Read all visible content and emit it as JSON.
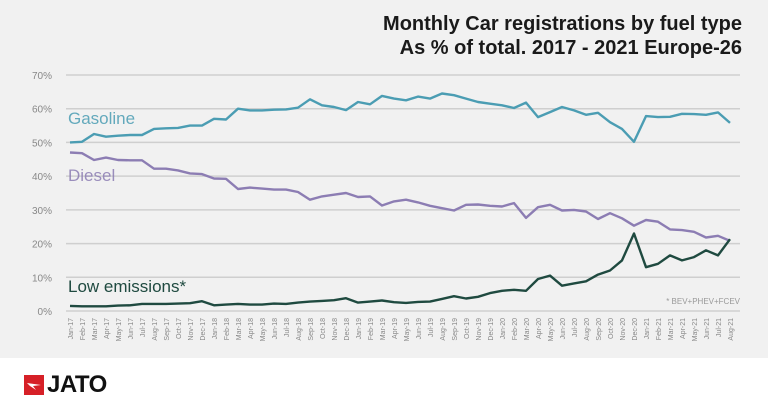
{
  "chart_data": {
    "type": "line",
    "title": "Monthly Car registrations by fuel type",
    "subtitle": "As % of total. 2017 - 2021 Europe-26",
    "xlabel": "",
    "ylabel": "",
    "ylim": [
      0,
      70
    ],
    "yticks": [
      "0%",
      "10%",
      "20%",
      "30%",
      "40%",
      "50%",
      "60%",
      "70%"
    ],
    "grid": true,
    "note": "* BEV+PHEV+FCEV",
    "x": [
      "Jan-17",
      "Feb-17",
      "Mar-17",
      "Apr-17",
      "May-17",
      "Jun-17",
      "Jul-17",
      "Aug-17",
      "Sep-17",
      "Oct-17",
      "Nov-17",
      "Dec-17",
      "Jan-18",
      "Feb-18",
      "Mar-18",
      "Apr-18",
      "May-18",
      "Jun-18",
      "Jul-18",
      "Aug-18",
      "Sep-18",
      "Oct-18",
      "Nov-18",
      "Dec-18",
      "Jan-19",
      "Feb-19",
      "Mar-19",
      "Apr-19",
      "May-19",
      "Jun-19",
      "Jul-19",
      "Aug-19",
      "Sep-19",
      "Oct-19",
      "Nov-19",
      "Dec-19",
      "Jan-20",
      "Feb-20",
      "Mar-20",
      "Apr-20",
      "May-20",
      "Jun-20",
      "Jul-20",
      "Aug-20",
      "Sep-20",
      "Oct-20",
      "Nov-20",
      "Dec-20",
      "Jan-21",
      "Feb-21",
      "Mar-21",
      "Apr-21",
      "May-21",
      "Jun-21",
      "Jul-21",
      "Aug-21"
    ],
    "series": [
      {
        "name": "Gasoline",
        "color": "#4b9db3",
        "values": [
          50,
          50.2,
          52.5,
          51.7,
          52,
          52.2,
          52.2,
          54,
          54.2,
          54.3,
          55,
          55,
          57,
          56.8,
          60,
          59.5,
          59.5,
          59.7,
          59.8,
          60.3,
          62.8,
          61,
          60.5,
          59.6,
          62,
          61.3,
          63.8,
          63,
          62.5,
          63.6,
          63,
          64.5,
          64,
          63,
          62,
          61.5,
          61,
          60.2,
          61.8,
          57.5,
          59,
          60.5,
          59.5,
          58.2,
          58.8,
          56,
          54,
          50.2,
          57.8,
          57.5,
          57.6,
          58.5,
          58.4,
          58.2,
          58.9,
          55.8
        ]
      },
      {
        "name": "Diesel",
        "color": "#8c7db3",
        "values": [
          47,
          46.8,
          44.8,
          45.5,
          44.8,
          44.7,
          44.7,
          42.2,
          42.2,
          41.7,
          40.8,
          40.6,
          39.3,
          39.2,
          36.2,
          36.6,
          36.3,
          36,
          36,
          35.3,
          33,
          34,
          34.5,
          35,
          33.8,
          34,
          31.3,
          32.5,
          33,
          32.2,
          31.2,
          30.5,
          29.8,
          31.5,
          31.6,
          31.2,
          31,
          32,
          27.6,
          30.8,
          31.5,
          29.8,
          30,
          29.5,
          27.3,
          29,
          27.5,
          25.3,
          27,
          26.5,
          24.2,
          24,
          23.5,
          21.8,
          22.3,
          20.8
        ]
      },
      {
        "name": "Low emissions*",
        "color": "#1f4a40",
        "values": [
          1.5,
          1.4,
          1.4,
          1.4,
          1.6,
          1.7,
          2.1,
          2.1,
          2.1,
          2.2,
          2.3,
          2.9,
          1.7,
          1.9,
          2.1,
          1.9,
          1.9,
          2.2,
          2.1,
          2.5,
          2.8,
          3.0,
          3.2,
          3.8,
          2.5,
          2.8,
          3.1,
          2.6,
          2.4,
          2.7,
          2.8,
          3.6,
          4.4,
          3.7,
          4.2,
          5.3,
          6,
          6.3,
          6,
          9.5,
          10.5,
          7.5,
          8.2,
          8.8,
          10.8,
          12,
          15,
          23,
          13,
          14,
          16.5,
          15,
          16,
          18,
          16.5,
          21.3
        ]
      }
    ]
  },
  "brand": {
    "logo_text": "JATO",
    "logo_color": "#d62027"
  }
}
